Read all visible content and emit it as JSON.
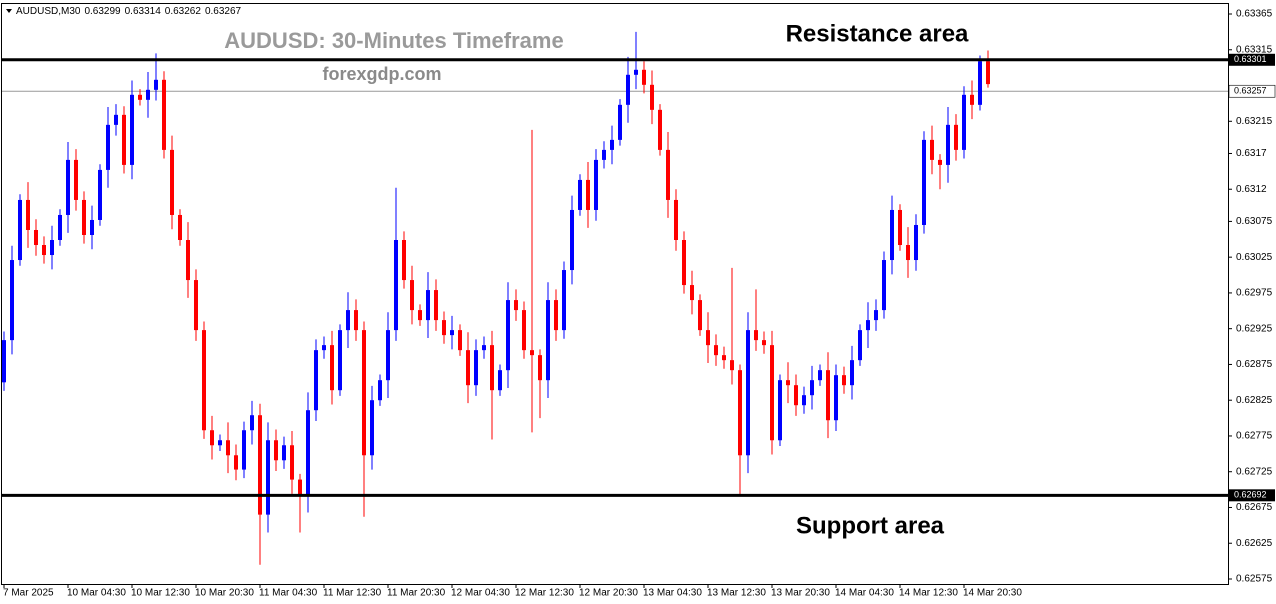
{
  "chart_data": {
    "type": "candlestick",
    "symbol": "AUDUSD,M30",
    "title": "AUDUSD: 30-Minutes Timeframe",
    "subtitle": "forexgdp.com",
    "annotations": [
      "Resistance area",
      "Support area"
    ],
    "categories": [
      "7 Mar 2025",
      null,
      null,
      null,
      null,
      null,
      null,
      null,
      "10 Mar 04:30",
      null,
      null,
      null,
      null,
      null,
      null,
      null,
      "10 Mar 12:30",
      null,
      null,
      null,
      null,
      null,
      null,
      null,
      "10 Mar 20:30",
      null,
      null,
      null,
      null,
      null,
      null,
      null,
      "11 Mar 04:30",
      null,
      null,
      null,
      null,
      null,
      null,
      null,
      "11 Mar 12:30",
      null,
      null,
      null,
      null,
      null,
      null,
      null,
      "11 Mar 20:30",
      null,
      null,
      null,
      null,
      null,
      null,
      null,
      "12 Mar 04:30",
      null,
      null,
      null,
      null,
      null,
      null,
      null,
      "12 Mar 12:30",
      null,
      null,
      null,
      null,
      null,
      null,
      null,
      "12 Mar 20:30",
      null,
      null,
      null,
      null,
      null,
      null,
      null,
      "13 Mar 04:30",
      null,
      null,
      null,
      null,
      null,
      null,
      null,
      "13 Mar 12:30",
      null,
      null,
      null,
      null,
      null,
      null,
      null,
      "13 Mar 20:30",
      null,
      null,
      null,
      null,
      null,
      null,
      null,
      "14 Mar 04:30",
      null,
      null,
      null,
      null,
      null,
      null,
      null,
      "14 Mar 12:30",
      null,
      null,
      null,
      null,
      null,
      null,
      null,
      "14 Mar 20:30",
      null,
      null,
      null
    ],
    "open": [
      0.6285,
      0.62909,
      0.63021,
      0.63105,
      0.63063,
      0.63042,
      0.63028,
      0.63049,
      0.63084,
      0.63161,
      0.63105,
      0.63056,
      0.63077,
      0.63147,
      0.6321,
      0.63224,
      0.63154,
      0.63252,
      0.63245,
      0.63259,
      0.63273,
      0.63175,
      0.63084,
      0.63049,
      0.62993,
      0.62923,
      0.62783,
      0.62762,
      0.62769,
      0.62748,
      0.62728,
      0.62783,
      0.62804,
      0.62665,
      0.62769,
      0.62741,
      0.62762,
      0.62714,
      0.62693,
      0.62811,
      0.62895,
      0.62902,
      0.62839,
      0.62923,
      0.62951,
      0.62923,
      0.62748,
      0.62825,
      0.62853,
      0.62923,
      0.63049,
      0.62993,
      0.62951,
      0.62937,
      0.62979,
      0.62937,
      0.62916,
      0.62923,
      0.62895,
      0.62846,
      0.62895,
      0.62902,
      0.62839,
      0.62867,
      0.62965,
      0.62951,
      0.62895,
      0.62888,
      0.62853,
      0.62965,
      0.62923,
      0.63007,
      0.63091,
      0.63133,
      0.63091,
      0.63161,
      0.63175,
      0.63189,
      0.63238,
      0.6328,
      0.63287,
      0.63266,
      0.63231,
      0.63175,
      0.63105,
      0.63049,
      0.62986,
      0.62965,
      0.62923,
      0.62902,
      0.62888,
      0.62881,
      0.62867,
      0.62748,
      0.62923,
      0.62909,
      0.62902,
      0.62769,
      0.62853,
      0.62846,
      0.62818,
      0.62832,
      0.62853,
      0.62867,
      0.62797,
      0.6286,
      0.62846,
      0.62881,
      0.62923,
      0.62937,
      0.62951,
      0.63021,
      0.63091,
      0.63042,
      0.63021,
      0.6307,
      0.63189,
      0.63161,
      0.63154,
      0.6321,
      0.63175,
      0.63252,
      0.63238,
      0.63299
    ],
    "high": [
      0.62921,
      0.63041,
      0.63113,
      0.6313,
      0.63078,
      0.63054,
      0.63069,
      0.63092,
      0.63186,
      0.63176,
      0.63117,
      0.63097,
      0.63155,
      0.63235,
      0.63239,
      0.63236,
      0.63272,
      0.6326,
      0.63284,
      0.6331,
      0.63285,
      0.63195,
      0.63092,
      0.63074,
      0.63008,
      0.62935,
      0.62803,
      0.62777,
      0.62794,
      0.62763,
      0.62795,
      0.62824,
      0.6282,
      0.62794,
      0.62784,
      0.62774,
      0.62782,
      0.62722,
      0.62836,
      0.6291,
      0.62914,
      0.62922,
      0.62931,
      0.62976,
      0.62966,
      0.62935,
      0.62845,
      0.62861,
      0.62948,
      0.63122,
      0.63061,
      0.63013,
      0.62959,
      0.63004,
      0.62994,
      0.62949,
      0.62943,
      0.62931,
      0.6292,
      0.6291,
      0.62914,
      0.62922,
      0.62875,
      0.6299,
      0.6298,
      0.62963,
      0.63203,
      0.62896,
      0.6299,
      0.6298,
      0.63019,
      0.63111,
      0.63141,
      0.63158,
      0.63176,
      0.63187,
      0.63209,
      0.63246,
      0.63305,
      0.6334,
      0.63299,
      0.63286,
      0.63239,
      0.632,
      0.6312,
      0.63061,
      0.63006,
      0.62973,
      0.62948,
      0.62917,
      0.629,
      0.6301,
      0.62875,
      0.62948,
      0.6298,
      0.62921,
      0.62922,
      0.62861,
      0.62878,
      0.62861,
      0.62844,
      0.62873,
      0.62875,
      0.62892,
      0.62875,
      0.62872,
      0.62901,
      0.62931,
      0.62962,
      0.62966,
      0.63033,
      0.63111,
      0.63099,
      0.63067,
      0.63085,
      0.63201,
      0.63209,
      0.63169,
      0.63235,
      0.63225,
      0.63264,
      0.63272,
      0.63307,
      0.63314
    ],
    "low": [
      0.62838,
      0.62889,
      0.63013,
      0.63038,
      0.63027,
      0.63016,
      0.63008,
      0.63041,
      0.63059,
      0.6309,
      0.63044,
      0.63036,
      0.63069,
      0.63122,
      0.63195,
      0.63142,
      0.63134,
      0.63237,
      0.6322,
      0.63244,
      0.63163,
      0.63064,
      0.63041,
      0.62968,
      0.62908,
      0.62771,
      0.62742,
      0.62754,
      0.62723,
      0.62713,
      0.62716,
      0.62763,
      0.62595,
      0.6264,
      0.62726,
      0.62729,
      0.62694,
      0.6264,
      0.62668,
      0.62796,
      0.62883,
      0.62819,
      0.62831,
      0.62898,
      0.62908,
      0.62662,
      0.62728,
      0.62817,
      0.62828,
      0.62908,
      0.62981,
      0.62931,
      0.62929,
      0.62912,
      0.62922,
      0.62904,
      0.62896,
      0.62887,
      0.62821,
      0.62831,
      0.62883,
      0.6277,
      0.62831,
      0.62842,
      0.62936,
      0.62883,
      0.6278,
      0.628,
      0.62828,
      0.62908,
      0.62911,
      0.62987,
      0.63083,
      0.63066,
      0.63076,
      0.63149,
      0.63155,
      0.63181,
      0.63213,
      0.6326,
      0.63254,
      0.63211,
      0.63167,
      0.6308,
      0.63034,
      0.62974,
      0.62945,
      0.62915,
      0.62877,
      0.62873,
      0.62869,
      0.62847,
      0.62692,
      0.62723,
      0.62894,
      0.6289,
      0.62749,
      0.62761,
      0.62821,
      0.62803,
      0.62806,
      0.62812,
      0.62845,
      0.62772,
      0.62782,
      0.62834,
      0.62826,
      0.62873,
      0.62898,
      0.62922,
      0.62939,
      0.63001,
      0.63034,
      0.62996,
      0.63006,
      0.63058,
      0.63141,
      0.6312,
      0.63129,
      0.6316,
      0.63163,
      0.63218,
      0.6323,
      0.63262
    ],
    "close": [
      0.62909,
      0.63021,
      0.63105,
      0.63063,
      0.63042,
      0.63028,
      0.63049,
      0.63084,
      0.63161,
      0.63105,
      0.63056,
      0.63077,
      0.63147,
      0.6321,
      0.63224,
      0.63154,
      0.63252,
      0.63245,
      0.63259,
      0.63273,
      0.63175,
      0.63084,
      0.63049,
      0.62993,
      0.62923,
      0.62783,
      0.62762,
      0.62769,
      0.62748,
      0.62728,
      0.62783,
      0.62804,
      0.62665,
      0.62769,
      0.62741,
      0.62762,
      0.62714,
      0.62693,
      0.62811,
      0.62895,
      0.62902,
      0.62839,
      0.62923,
      0.62951,
      0.62923,
      0.62748,
      0.62825,
      0.62853,
      0.62923,
      0.63049,
      0.62993,
      0.62951,
      0.62937,
      0.62979,
      0.62937,
      0.62916,
      0.62923,
      0.62895,
      0.62846,
      0.62895,
      0.62902,
      0.62839,
      0.62867,
      0.62965,
      0.62951,
      0.62895,
      0.62888,
      0.62853,
      0.62965,
      0.62923,
      0.63007,
      0.63091,
      0.63133,
      0.63091,
      0.63161,
      0.63175,
      0.63189,
      0.63238,
      0.6328,
      0.63287,
      0.63266,
      0.63231,
      0.63175,
      0.63105,
      0.63049,
      0.62986,
      0.62965,
      0.62923,
      0.62902,
      0.62888,
      0.62881,
      0.62867,
      0.62748,
      0.62923,
      0.62909,
      0.62902,
      0.62769,
      0.62853,
      0.62846,
      0.62818,
      0.62832,
      0.62853,
      0.62867,
      0.62797,
      0.6286,
      0.62846,
      0.62881,
      0.62923,
      0.62937,
      0.62951,
      0.63021,
      0.63091,
      0.63042,
      0.63021,
      0.6307,
      0.63189,
      0.63161,
      0.63154,
      0.6321,
      0.63175,
      0.63252,
      0.63238,
      0.63299,
      0.63267
    ],
    "up_color": "#0000ff",
    "down_color": "#ff0000",
    "ylim": [
      0.62568,
      0.63379
    ],
    "yticks": [
      0.63365,
      0.63315,
      0.63215,
      0.6317,
      0.6312,
      0.63075,
      0.63025,
      0.62975,
      0.62925,
      0.62875,
      0.62825,
      0.62775,
      0.62725,
      0.62675,
      0.62625,
      0.62575
    ],
    "levels": [
      0.63301,
      0.62692
    ],
    "price_line": 0.63257
  }
}
